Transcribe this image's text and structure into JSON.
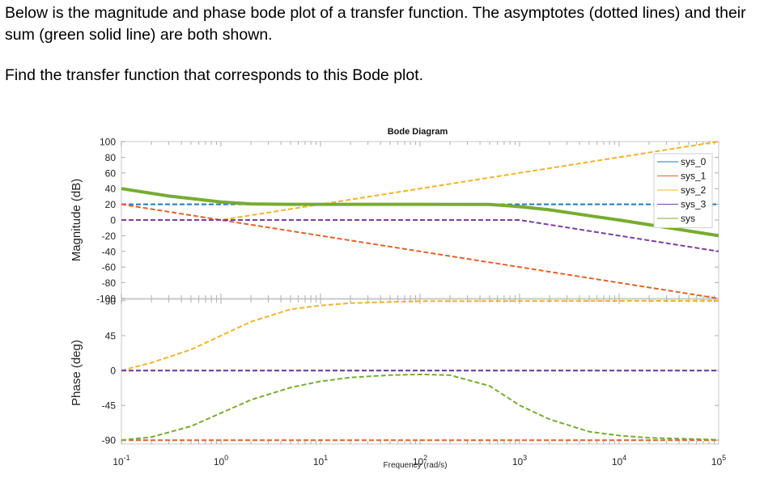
{
  "question": {
    "intro": "Below is the magnitude and phase bode plot of a transfer function. The asymptotes (dotted lines) and their sum (green solid line) are both shown.",
    "task": "Find the transfer function that corresponds to this Bode plot."
  },
  "chart_data": {
    "type": "line",
    "title": "Bode Diagram",
    "xlabel": "Frequency (rad/s)",
    "x_scale": "log",
    "xlim": [
      0.1,
      100000
    ],
    "x_ticks": [
      {
        "value": 0.1,
        "base": "10",
        "exp": "-1"
      },
      {
        "value": 1,
        "base": "10",
        "exp": "0"
      },
      {
        "value": 10,
        "base": "10",
        "exp": "1"
      },
      {
        "value": 100,
        "base": "10",
        "exp": "2"
      },
      {
        "value": 1000,
        "base": "10",
        "exp": "3"
      },
      {
        "value": 10000,
        "base": "10",
        "exp": "4"
      },
      {
        "value": 100000,
        "base": "10",
        "exp": "5"
      }
    ],
    "legend": {
      "placement": "top-right",
      "entries": [
        "sys_0",
        "sys_1",
        "sys_2",
        "sys_3",
        "sys"
      ]
    },
    "grid": false,
    "panels": [
      {
        "id": "magnitude",
        "ylabel": "Magnitude (dB)",
        "ylim": [
          -100,
          100
        ],
        "y_ticks": [
          "100",
          "80",
          "60",
          "40",
          "20",
          "0",
          "-20",
          "-40",
          "-60",
          "-80",
          "-100"
        ],
        "y_tick_values": [
          100,
          80,
          60,
          40,
          20,
          0,
          -20,
          -40,
          -60,
          -80,
          -100
        ],
        "series": [
          {
            "name": "sys_0",
            "color": "#1f77c4",
            "style": "dashed",
            "x": [
              0.1,
              100000
            ],
            "y": [
              20,
              20
            ]
          },
          {
            "name": "sys_1",
            "color": "#e0622a",
            "style": "dashed",
            "x": [
              0.1,
              100000
            ],
            "y": [
              20,
              -100
            ]
          },
          {
            "name": "sys_2",
            "color": "#f0b429",
            "style": "dashed",
            "x": [
              0.1,
              1,
              100000
            ],
            "y": [
              0,
              0,
              100
            ]
          },
          {
            "name": "sys_3",
            "color": "#7b3f9e",
            "style": "dashed",
            "x": [
              0.1,
              1000,
              100000
            ],
            "y": [
              0,
              0,
              -40
            ]
          },
          {
            "name": "sys",
            "color": "#77ac30",
            "style": "solid",
            "x": [
              0.1,
              0.3,
              1,
              2,
              5,
              10,
              100,
              500,
              1000,
              2000,
              5000,
              10000,
              100000
            ],
            "y": [
              40,
              30.5,
              23,
              20.5,
              20,
              20,
              20,
              19.9,
              17,
              13,
              5.5,
              0,
              -20
            ]
          }
        ]
      },
      {
        "id": "phase",
        "ylabel": "Phase (deg)",
        "ylim": [
          -95,
          92
        ],
        "y_ticks": [
          "90",
          "45",
          "0",
          "-45",
          "-90"
        ],
        "y_tick_values": [
          90,
          45,
          0,
          -45,
          -90
        ],
        "series": [
          {
            "name": "sys_0",
            "color": "#1f77c4",
            "style": "dashed",
            "x": [
              0.1,
              100000
            ],
            "y": [
              0,
              0
            ]
          },
          {
            "name": "sys_1",
            "color": "#e0622a",
            "style": "dashed",
            "x": [
              0.1,
              100000
            ],
            "y": [
              -90,
              -90
            ]
          },
          {
            "name": "sys_2",
            "color": "#f0b429",
            "style": "dashed",
            "x": [
              0.1,
              0.2,
              0.5,
              1,
              2,
              5,
              10,
              20,
              100,
              100000
            ],
            "y": [
              0,
              10,
              27,
              45,
              63,
              79,
              84,
              87,
              89.5,
              90
            ]
          },
          {
            "name": "sys_3",
            "color": "#7b3f9e",
            "style": "dashed",
            "x": [
              0.1,
              100000
            ],
            "y": [
              0,
              0
            ]
          },
          {
            "name": "sys",
            "color": "#77ac30",
            "style": "dashed",
            "x": [
              0.1,
              0.2,
              0.5,
              1,
              2,
              5,
              10,
              20,
              50,
              100,
              200,
              500,
              1000,
              2000,
              5000,
              10000,
              20000,
              100000
            ],
            "y": [
              -90,
              -86,
              -72,
              -55,
              -38,
              -22,
              -14,
              -9,
              -6,
              -5,
              -6,
              -20,
              -45,
              -63,
              -79,
              -84,
              -87,
              -89.5
            ]
          }
        ]
      }
    ]
  }
}
